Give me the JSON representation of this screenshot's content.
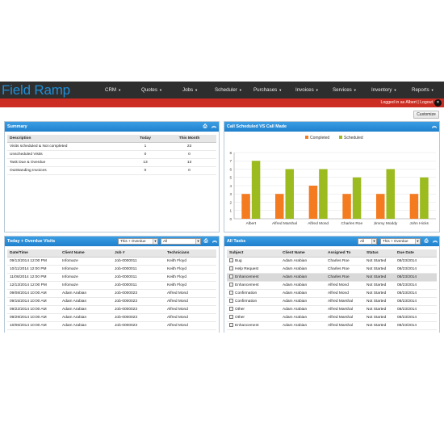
{
  "app": {
    "logo": "Field Ramp"
  },
  "nav": [
    {
      "label": "CRM",
      "caret": "▼"
    },
    {
      "label": "Quotes",
      "caret": "▼"
    },
    {
      "label": "Jobs",
      "caret": "▼"
    },
    {
      "label": "Scheduler",
      "caret": "▼"
    },
    {
      "label": "Purchases",
      "caret": "▼"
    },
    {
      "label": "Invoices",
      "caret": "▼"
    },
    {
      "label": "Services",
      "caret": "▼"
    },
    {
      "label": "Inventory",
      "caret": "▼"
    },
    {
      "label": "Reports",
      "caret": "▼"
    }
  ],
  "user_bar": {
    "text": "Logged in as Albert | Logout"
  },
  "customize_label": "Customize",
  "summary": {
    "title": "Summary",
    "headers": [
      "Description",
      "Today",
      "This Month"
    ],
    "rows": [
      [
        "Visits scheduled & Not completed",
        "1",
        "23"
      ],
      [
        "Unscheduled Visits",
        "0",
        "0"
      ],
      [
        "Task Due & Overdue",
        "13",
        "13"
      ],
      [
        "OutStanding Invoices",
        "0",
        "0"
      ]
    ]
  },
  "chart_panel": {
    "title": "Call Scheduled VS Call Made"
  },
  "chart_data": {
    "type": "bar",
    "categories": [
      "Albert",
      "Alfred Marshal",
      "Alfred Mond",
      "Charles Roe",
      "Jimmy Moddy",
      "John Hicks"
    ],
    "series": [
      {
        "name": "Completed",
        "values": [
          3,
          3,
          4,
          3,
          3,
          3
        ],
        "color": "#f47b20"
      },
      {
        "name": "Scheduled",
        "values": [
          7,
          6,
          6,
          5,
          6,
          5
        ],
        "color": "#9bbb1f"
      }
    ],
    "ylim": [
      0,
      8
    ],
    "yticks": [
      "0",
      "1",
      "2",
      "3",
      "4",
      "5",
      "6",
      "7",
      "8"
    ],
    "legend": "top-center",
    "grid": true
  },
  "visits": {
    "title": "Today + Overdue Visits",
    "filter1": "This + Overdue",
    "filter2": "All",
    "headers": [
      "Date/Time",
      "Client Name",
      "Job #",
      "Technicians"
    ],
    "rows": [
      [
        "09/13/2014 12:00 PM",
        "Infomaze",
        "Job-0000011",
        "Keith Floyd"
      ],
      [
        "10/11/2014 12:00 PM",
        "Infomaze",
        "Job-0000011",
        "Keith Floyd"
      ],
      [
        "11/08/2014 12:00 PM",
        "Infomaze",
        "Job-0000011",
        "Keith Floyd"
      ],
      [
        "12/13/2014 12:00 PM",
        "Infomaze",
        "Job-0000011",
        "Keith Floyd"
      ],
      [
        "09/08/2014 10:00 AM",
        "Adam Arabian",
        "Job-0000023",
        "Alfred Mond"
      ],
      [
        "09/15/2014 10:00 AM",
        "Adam Arabian",
        "Job-0000023",
        "Alfred Mond"
      ],
      [
        "09/22/2014 10:00 AM",
        "Adam Arabian",
        "Job-0000023",
        "Alfred Mond"
      ],
      [
        "09/29/2014 10:00 AM",
        "Adam Arabian",
        "Job-0000023",
        "Alfred Mond"
      ],
      [
        "10/06/2014 10:00 AM",
        "Adam Arabian",
        "Job-0000023",
        "Alfred Mond"
      ]
    ]
  },
  "tasks": {
    "title": "All Tasks",
    "filter1": "All",
    "filter2": "This + Overdue",
    "headers": [
      "Subject",
      "Client Name",
      "Assigned To",
      "Status",
      "Due Date"
    ],
    "rows": [
      [
        "Bug",
        "Adam Arabian",
        "Charles Roe",
        "Not Started",
        "08/23/2014"
      ],
      [
        "Help Request",
        "Adam Arabian",
        "Charles Roe",
        "Not Started",
        "08/23/2014"
      ],
      [
        "Enhancement",
        "Adam Arabian",
        "Charles Roe",
        "Not Started",
        "08/23/2014"
      ],
      [
        "Enhancement",
        "Adam Arabian",
        "Alfred Mond",
        "Not Started",
        "08/23/2014"
      ],
      [
        "Confirmation",
        "Adam Arabian",
        "Alfred Mond",
        "Not Started",
        "08/23/2014"
      ],
      [
        "Confirmation",
        "Adam Arabian",
        "Alfred Marshal",
        "Not Started",
        "08/23/2014"
      ],
      [
        "Other",
        "Adam Arabian",
        "Alfred Marshal",
        "Not Started",
        "08/23/2014"
      ],
      [
        "Other",
        "Adam Arabian",
        "Alfred Marshal",
        "Not Started",
        "08/23/2014"
      ],
      [
        "Enhancement",
        "Adam Arabian",
        "Alfred Marshal",
        "Not Started",
        "08/23/2014"
      ]
    ]
  }
}
